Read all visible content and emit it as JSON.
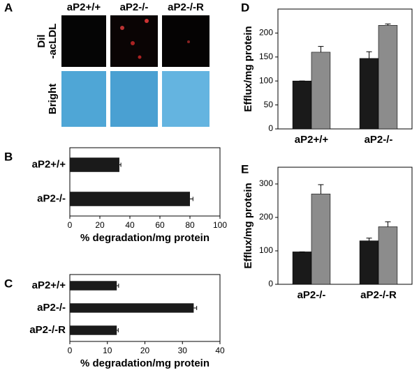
{
  "panel_a": {
    "panel": "A",
    "columns": [
      "aP2+/+",
      "aP2-/-",
      "aP2-/-R"
    ],
    "rows": [
      "Dil\n-acLDL",
      "Bright"
    ]
  },
  "chart_data": [
    {
      "type": "hbar",
      "panel": "B",
      "categories": [
        "aP2+/+",
        "aP2-/-"
      ],
      "values": [
        33,
        80
      ],
      "errors": [
        1,
        2
      ],
      "color": "#1a1a1a",
      "xlim": [
        0,
        100
      ],
      "xticks": [
        0,
        20,
        40,
        60,
        80,
        100
      ],
      "x_label": "% degradation/mg protein"
    },
    {
      "type": "hbar",
      "panel": "C",
      "categories": [
        "aP2+/+",
        "aP2-/-",
        "aP2-/-R"
      ],
      "values": [
        12.5,
        33,
        12.5
      ],
      "errors": [
        0.5,
        0.8,
        0.4
      ],
      "color": "#1a1a1a",
      "xlim": [
        0,
        40
      ],
      "xticks": [
        0,
        10,
        20,
        30,
        40
      ],
      "x_label": "% degradation/mg protein"
    },
    {
      "type": "bar",
      "panel": "D",
      "categories": [
        "aP2+/+",
        "aP2-/-"
      ],
      "y_label": "Efflux/mg protein",
      "series": [
        {
          "color": "#1a1a1a",
          "values": [
            100,
            147
          ],
          "errors": [
            0,
            14
          ]
        },
        {
          "color": "#8c8c8c",
          "values": [
            160,
            216
          ],
          "errors": [
            12,
            3
          ]
        }
      ],
      "ylim": [
        0,
        250
      ],
      "yticks": [
        0,
        50,
        100,
        150,
        200
      ]
    },
    {
      "type": "bar",
      "panel": "E",
      "categories": [
        "aP2-/-",
        "aP2-/-R"
      ],
      "y_label": "Efflux/mg protein",
      "series": [
        {
          "color": "#1a1a1a",
          "values": [
            97,
            130
          ],
          "errors": [
            0,
            8
          ]
        },
        {
          "color": "#8c8c8c",
          "values": [
            270,
            172
          ],
          "errors": [
            28,
            15
          ]
        }
      ],
      "ylim": [
        0,
        350
      ],
      "yticks": [
        0,
        100,
        200,
        300
      ]
    }
  ]
}
